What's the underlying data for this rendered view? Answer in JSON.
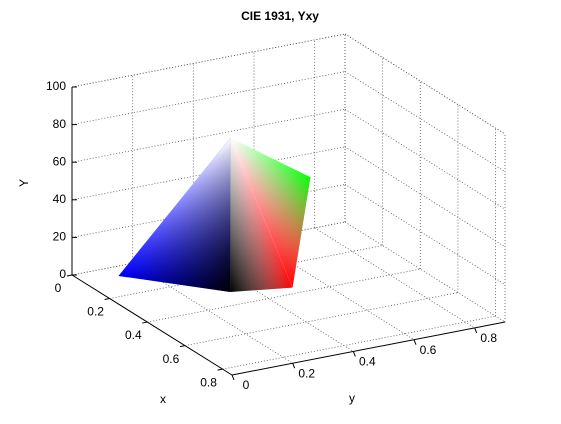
{
  "chart_data": {
    "type": "surface3d",
    "title": "CIE 1931, Yxy",
    "xlabel": "x",
    "ylabel": "y",
    "zlabel": "Y",
    "x": [
      0.15,
      0.31,
      0.3,
      0.64,
      0.31
    ],
    "y": [
      0.06,
      0.33,
      0.6,
      0.33,
      0.33
    ],
    "z": [
      7,
      82,
      52,
      23,
      0
    ],
    "colors": [
      "#0000ff",
      "#ffffff",
      "#00ff00",
      "#ff0000",
      "#000000"
    ],
    "xlim": [
      0,
      0.85
    ],
    "ylim": [
      0,
      0.9
    ],
    "zlim": [
      0,
      100
    ],
    "xticks": [
      0,
      0.2,
      0.4,
      0.6,
      0.8
    ],
    "yticks": [
      0,
      0.2,
      0.4,
      0.6,
      0.8
    ],
    "zticks": [
      0,
      20,
      40,
      60,
      80,
      100
    ],
    "grid": true
  }
}
